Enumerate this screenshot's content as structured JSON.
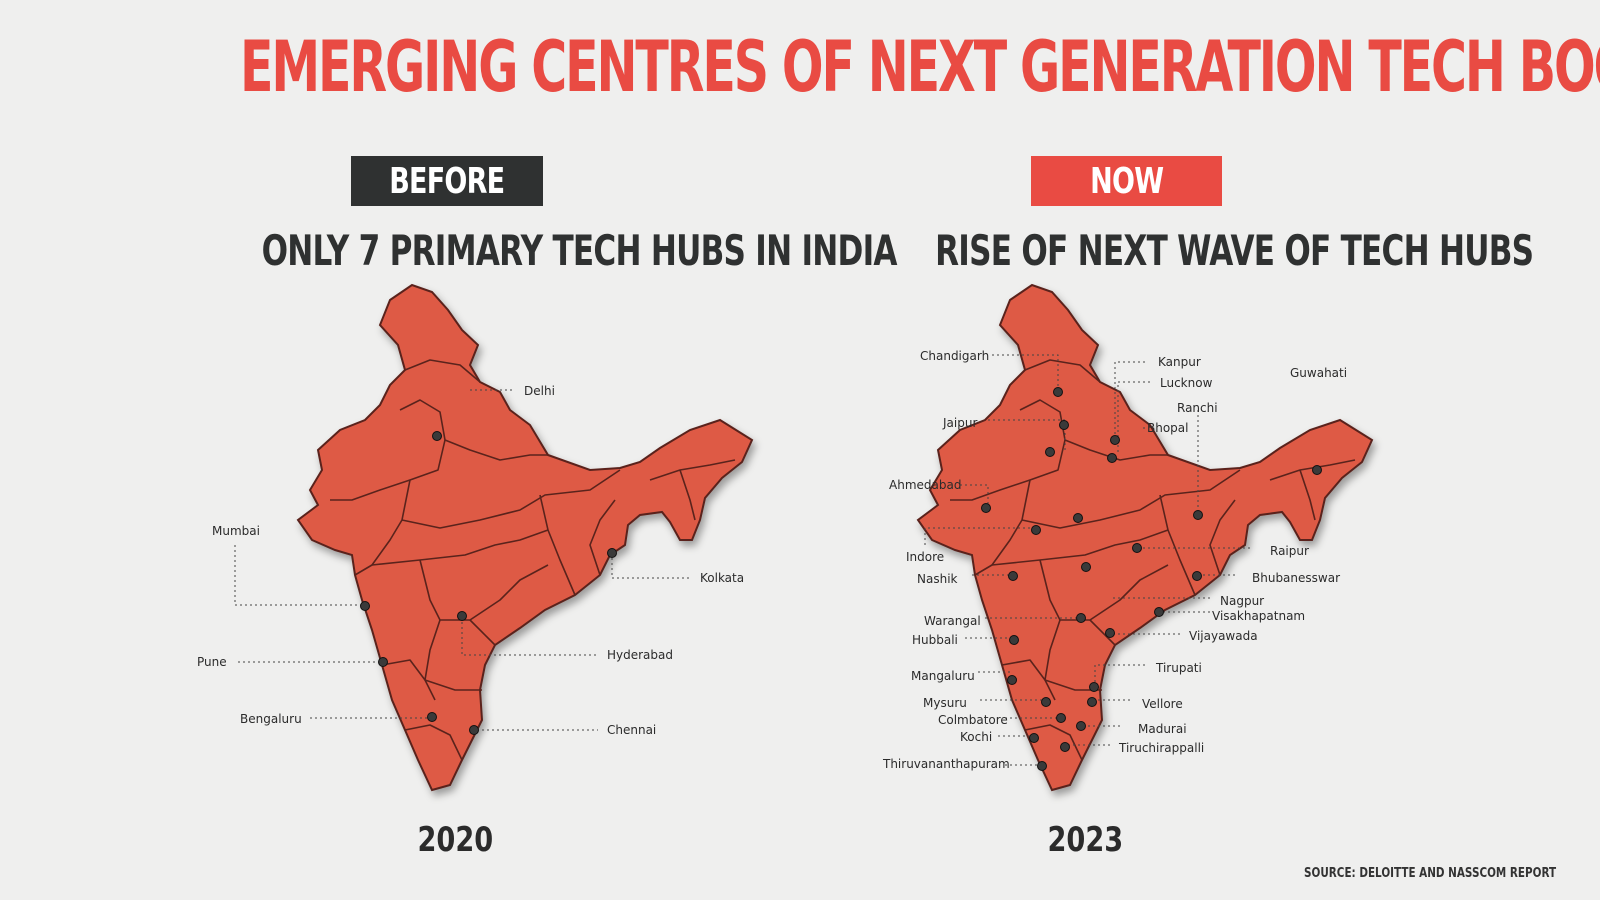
{
  "title": "EMERGING CENTRES OF NEXT GENERATION TECH BOOM",
  "colors": {
    "accent": "#e94b43",
    "dark": "#2f3131",
    "map_fill": "#de5a45",
    "map_border": "#5a231c"
  },
  "before": {
    "badge": "BEFORE",
    "subtitle": "ONLY 7 PRIMARY TECH HUBS IN INDIA",
    "year": "2020",
    "cities": [
      "Delhi",
      "Mumbai",
      "Kolkata",
      "Pune",
      "Hyderabad",
      "Bengaluru",
      "Chennai"
    ]
  },
  "now": {
    "badge": "NOW",
    "subtitle": "RISE OF NEXT WAVE OF TECH HUBS",
    "year": "2023",
    "cities": [
      "Chandigarh",
      "Kanpur",
      "Lucknow",
      "Guwahati",
      "Ranchi",
      "Jaipur",
      "Bhopal",
      "Ahmedabad",
      "Indore",
      "Raipur",
      "Nashik",
      "Bhubanesswar",
      "Nagpur",
      "Visakhapatnam",
      "Warangal",
      "Vijayawada",
      "Hubbali",
      "Tirupati",
      "Mangaluru",
      "Mysuru",
      "Vellore",
      "Colmbatore",
      "Madurai",
      "Kochi",
      "Tiruchirappalli",
      "Thiruvananthapuram"
    ]
  },
  "source": "SOURCE: DELOITTE AND NASSCOM REPORT"
}
